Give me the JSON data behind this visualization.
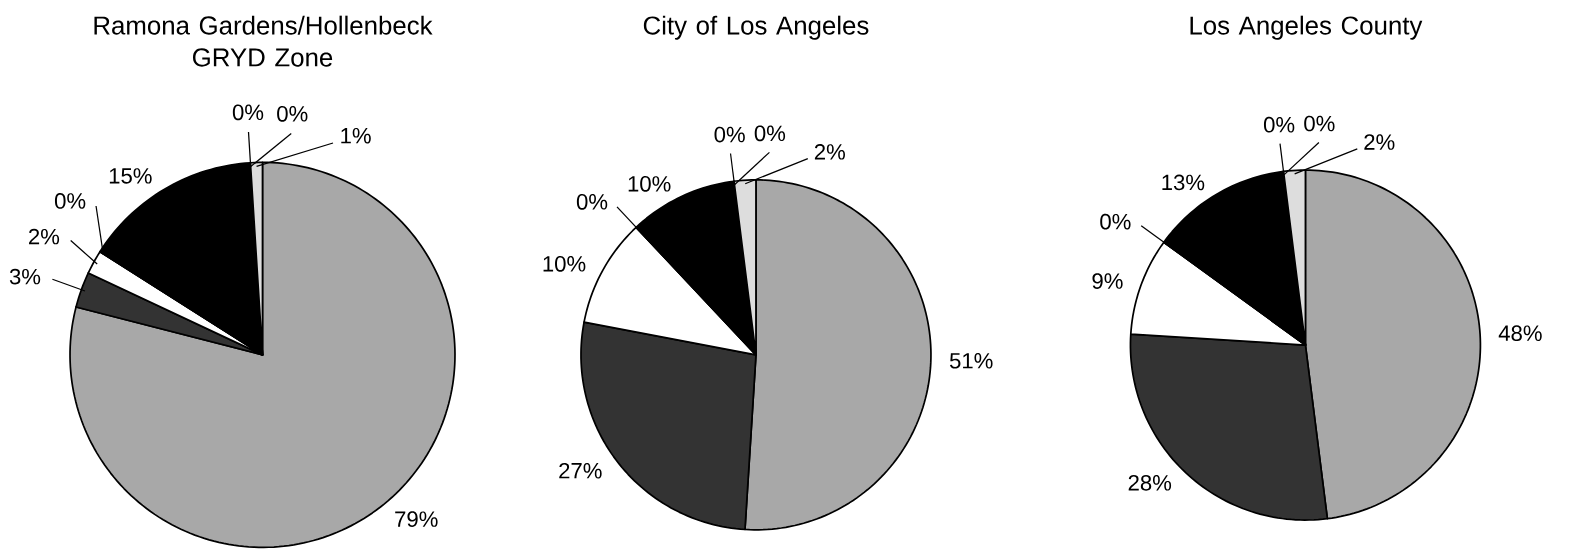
{
  "chart_data": [
    {
      "type": "pie",
      "title": "Ramona Gardens/Hollenbeck GRYD Zone",
      "categories": [
        null,
        null,
        null,
        null,
        null,
        null,
        null,
        null
      ],
      "values": [
        79,
        3,
        2,
        0,
        15,
        0,
        0,
        1
      ],
      "value_labels": [
        "79%",
        "3%",
        "2%",
        "0%",
        "15%",
        "0%",
        "0%",
        "1%"
      ],
      "colors": [
        "#a8a8a8",
        "#333333",
        "#ffffff",
        "#777777",
        "#000000",
        "#555555",
        "#999999",
        "#dddddd"
      ]
    },
    {
      "type": "pie",
      "title": "City of Los Angeles",
      "categories": [
        null,
        null,
        null,
        null,
        null,
        null,
        null,
        null
      ],
      "values": [
        51,
        27,
        10,
        0,
        10,
        0,
        0,
        2
      ],
      "value_labels": [
        "51%",
        "27%",
        "10%",
        "0%",
        "10%",
        "0%",
        "0%",
        "2%"
      ],
      "colors": [
        "#a8a8a8",
        "#333333",
        "#ffffff",
        "#777777",
        "#000000",
        "#555555",
        "#999999",
        "#dddddd"
      ]
    },
    {
      "type": "pie",
      "title": "Los Angeles County",
      "categories": [
        null,
        null,
        null,
        null,
        null,
        null,
        null,
        null
      ],
      "values": [
        48,
        28,
        9,
        0,
        13,
        0,
        0,
        2
      ],
      "value_labels": [
        "48%",
        "28%",
        "9%",
        "0%",
        "13%",
        "0%",
        "0%",
        "2%"
      ],
      "colors": [
        "#a8a8a8",
        "#333333",
        "#ffffff",
        "#777777",
        "#000000",
        "#555555",
        "#999999",
        "#dddddd"
      ]
    }
  ]
}
